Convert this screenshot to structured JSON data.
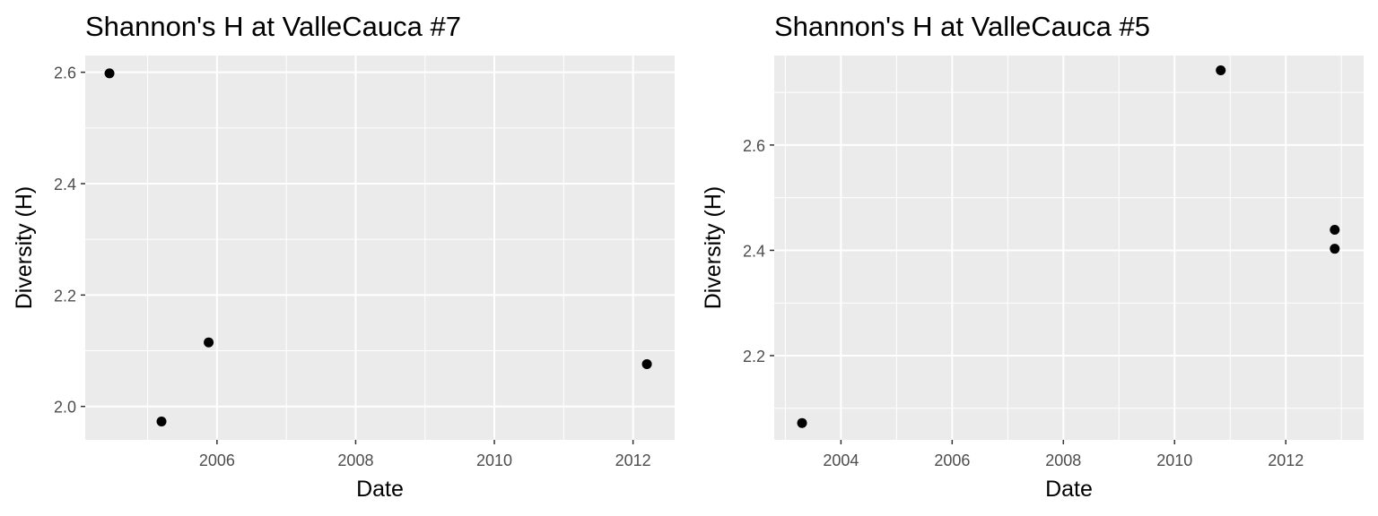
{
  "chart_data": [
    {
      "type": "scatter",
      "title": "Shannon's H at ValleCauca #7",
      "xlabel": "Date",
      "ylabel": "Diversity (H)",
      "x_type": "date",
      "xlim": [
        2004.1,
        2012.6
      ],
      "ylim": [
        1.94,
        2.63
      ],
      "x_ticks": [
        2006,
        2008,
        2010,
        2012
      ],
      "x_tick_labels": [
        "2006",
        "2008",
        "2010",
        "2012"
      ],
      "y_ticks": [
        2.0,
        2.2,
        2.4,
        2.6
      ],
      "y_tick_labels": [
        "2.0",
        "2.2",
        "2.4",
        "2.6"
      ],
      "grid": true,
      "point_color": "#000000",
      "panel_color": "#ebebeb",
      "points": [
        {
          "x": 2004.45,
          "y": 2.598
        },
        {
          "x": 2005.2,
          "y": 1.973
        },
        {
          "x": 2005.88,
          "y": 2.115
        },
        {
          "x": 2012.2,
          "y": 2.076
        }
      ]
    },
    {
      "type": "scatter",
      "title": "Shannon's H at ValleCauca #5",
      "xlabel": "Date",
      "ylabel": "Diversity (H)",
      "x_type": "date",
      "xlim": [
        2002.8,
        2013.4
      ],
      "ylim": [
        2.04,
        2.77
      ],
      "x_ticks": [
        2004,
        2006,
        2008,
        2010,
        2012
      ],
      "x_tick_labels": [
        "2004",
        "2006",
        "2008",
        "2010",
        "2012"
      ],
      "y_ticks": [
        2.2,
        2.4,
        2.6
      ],
      "y_tick_labels": [
        "2.2",
        "2.4",
        "2.6"
      ],
      "grid": true,
      "point_color": "#000000",
      "panel_color": "#ebebeb",
      "points": [
        {
          "x": 2003.3,
          "y": 2.072
        },
        {
          "x": 2010.83,
          "y": 2.742
        },
        {
          "x": 2012.88,
          "y": 2.439
        },
        {
          "x": 2012.88,
          "y": 2.403
        }
      ]
    }
  ]
}
